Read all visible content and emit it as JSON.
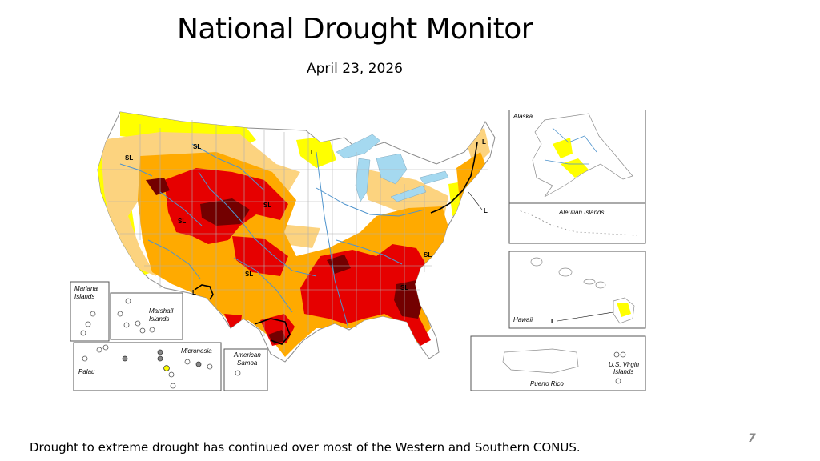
{
  "slide": {
    "title": "National Drought Monitor",
    "date": "April 23, 2026",
    "caption": "Drought to extreme drought has continued over most of the Western and Southern CONUS.",
    "page_number": "7"
  },
  "colors": {
    "D0": "#ffff00",
    "D1": "#fcd37f",
    "D2": "#ffaa00",
    "D3": "#e60000",
    "D4": "#730000",
    "water": "#a5d9f0",
    "rivers": "#4f94cd",
    "borders": "#b0b0b0"
  },
  "inset_labels": {
    "alaska": "Alaska",
    "aleutian": "Aleutian Islands",
    "hawaii": "Hawaii",
    "puerto_rico": "Puerto Rico",
    "usvi_line1": "U.S. Virgin",
    "usvi_line2": "Islands",
    "mariana_line1": "Mariana",
    "mariana_line2": "Islands",
    "marshall_line1": "Marshall",
    "marshall_line2": "Islands",
    "micronesia": "Micronesia",
    "palau": "Palau",
    "samoa_line1": "American",
    "samoa_line2": "Samoa"
  },
  "impact_labels": {
    "sl": "SL",
    "l": "L"
  }
}
